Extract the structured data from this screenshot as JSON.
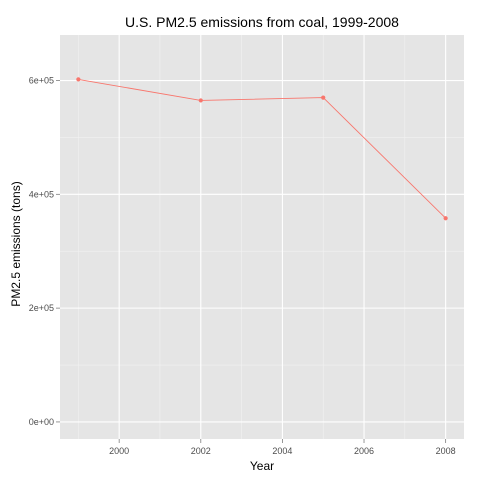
{
  "chart_data": {
    "type": "line",
    "title": "U.S. PM2.5 emissions from coal, 1999-2008",
    "xlabel": "Year",
    "ylabel": "PM2.5 emissions (tons)",
    "x": [
      1999,
      2002,
      2005,
      2008
    ],
    "series": [
      {
        "values": [
          602000,
          565000,
          570000,
          358000
        ]
      }
    ],
    "xlim": [
      1998.55,
      2008.45
    ],
    "ylim": [
      -30000,
      680000
    ],
    "xticks": [
      2000,
      2002,
      2004,
      2006,
      2008
    ],
    "xtick_labels": [
      "2000",
      "2002",
      "2004",
      "2006",
      "2008"
    ],
    "yticks": [
      0,
      200000,
      400000,
      600000
    ],
    "ytick_labels": [
      "0e+00",
      "2e+05",
      "4e+05",
      "6e+05"
    ],
    "grid": true,
    "colors": {
      "line": "#f8766d",
      "panel_background": "#e5e5e5",
      "grid_major": "#ffffff",
      "grid_minor": "#f2f2f2"
    }
  }
}
